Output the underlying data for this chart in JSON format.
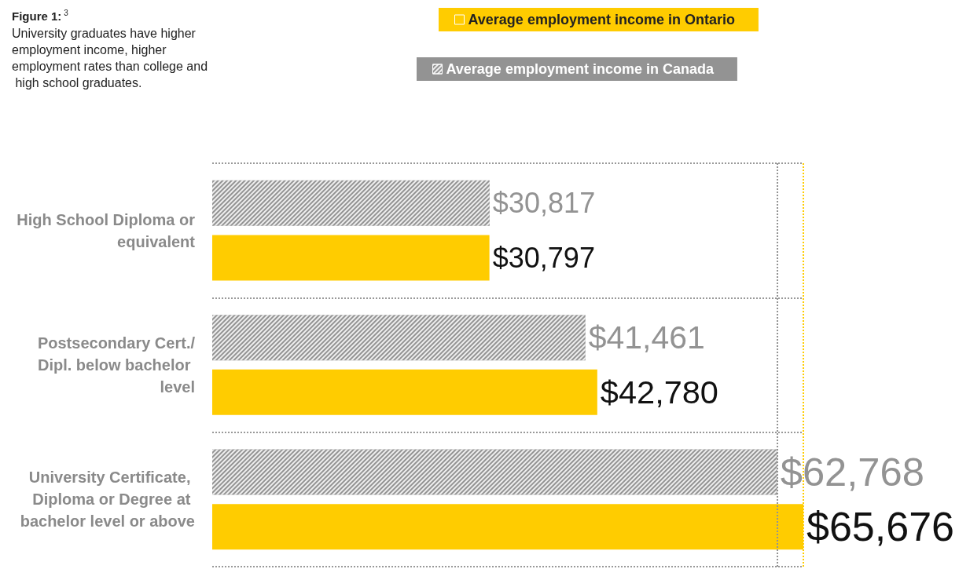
{
  "chart_data": {
    "type": "bar",
    "orientation": "horizontal",
    "title": "Figure 1:$^{3}$",
    "subtitle": "University graduates have higher employment income, higher employment rates than college and high school graduates.",
    "categories": [
      "High School Diploma or equivalent",
      "Postsecondary Cert./Dipl. below bachelor level",
      "University Certificate, Diploma or Degree at bachelor level or above"
    ],
    "series": [
      {
        "name": "Average employment income in Canada",
        "color": "#939393",
        "values": [
          30817,
          41461,
          62768
        ],
        "value_labels": [
          "$30,817",
          "$41,461",
          "$62,768"
        ]
      },
      {
        "name": "Average employment income in Ontario",
        "color": "#ffcc00",
        "values": [
          30797,
          42780,
          65676
        ],
        "value_labels": [
          "$30,797",
          "$42,780",
          "$65,676"
        ]
      }
    ],
    "ref_lines": [
      {
        "axis": "x",
        "value": 62768,
        "color": "#939393",
        "line_style": "dotted"
      },
      {
        "axis": "x",
        "value": 65676,
        "color": "#ffcc00",
        "line_style": "dotted"
      }
    ],
    "grid": "y",
    "legend": "top"
  }
}
